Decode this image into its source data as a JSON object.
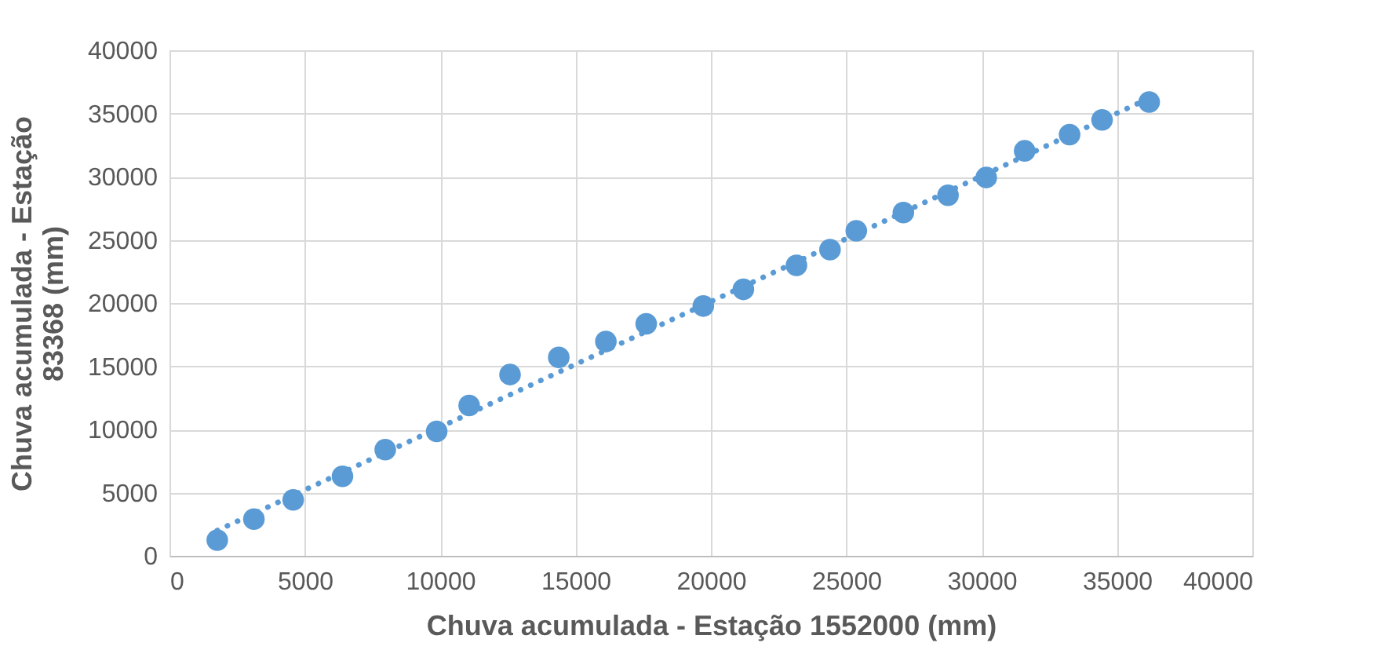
{
  "chart_data": {
    "type": "scatter",
    "xlabel": "Chuva acumulada - Estação 1552000 (mm)",
    "ylabel": "Chuva acumulada - Estação 83368 (mm)",
    "x": [
      1765,
      3118,
      4570,
      6390,
      7970,
      9870,
      11070,
      12580,
      14380,
      16120,
      17610,
      19720,
      21200,
      23160,
      24400,
      25370,
      27110,
      28760,
      30170,
      31590,
      33250,
      34450,
      36190
    ],
    "series": [
      {
        "color": "#5b9bd5",
        "marker": "circle",
        "values": [
          1240,
          2900,
          4430,
          6290,
          8400,
          9840,
          11900,
          14340,
          15700,
          16950,
          18350,
          19760,
          21080,
          22980,
          24220,
          25710,
          27160,
          28530,
          29930,
          32040,
          33320,
          34490,
          35900
        ]
      },
      {
        "type": "line",
        "color": "#5b9bd5",
        "line_style": "dotted",
        "x": [
          1765,
          36190
        ],
        "values": [
          2000,
          36200
        ]
      }
    ],
    "xlim": [
      0,
      40000
    ],
    "xticks": [
      0,
      5000,
      10000,
      15000,
      20000,
      25000,
      30000,
      35000,
      40000
    ],
    "ylim": [
      0,
      40000
    ],
    "yticks": [
      0,
      5000,
      10000,
      15000,
      20000,
      25000,
      30000,
      35000,
      40000
    ],
    "grid": true
  }
}
